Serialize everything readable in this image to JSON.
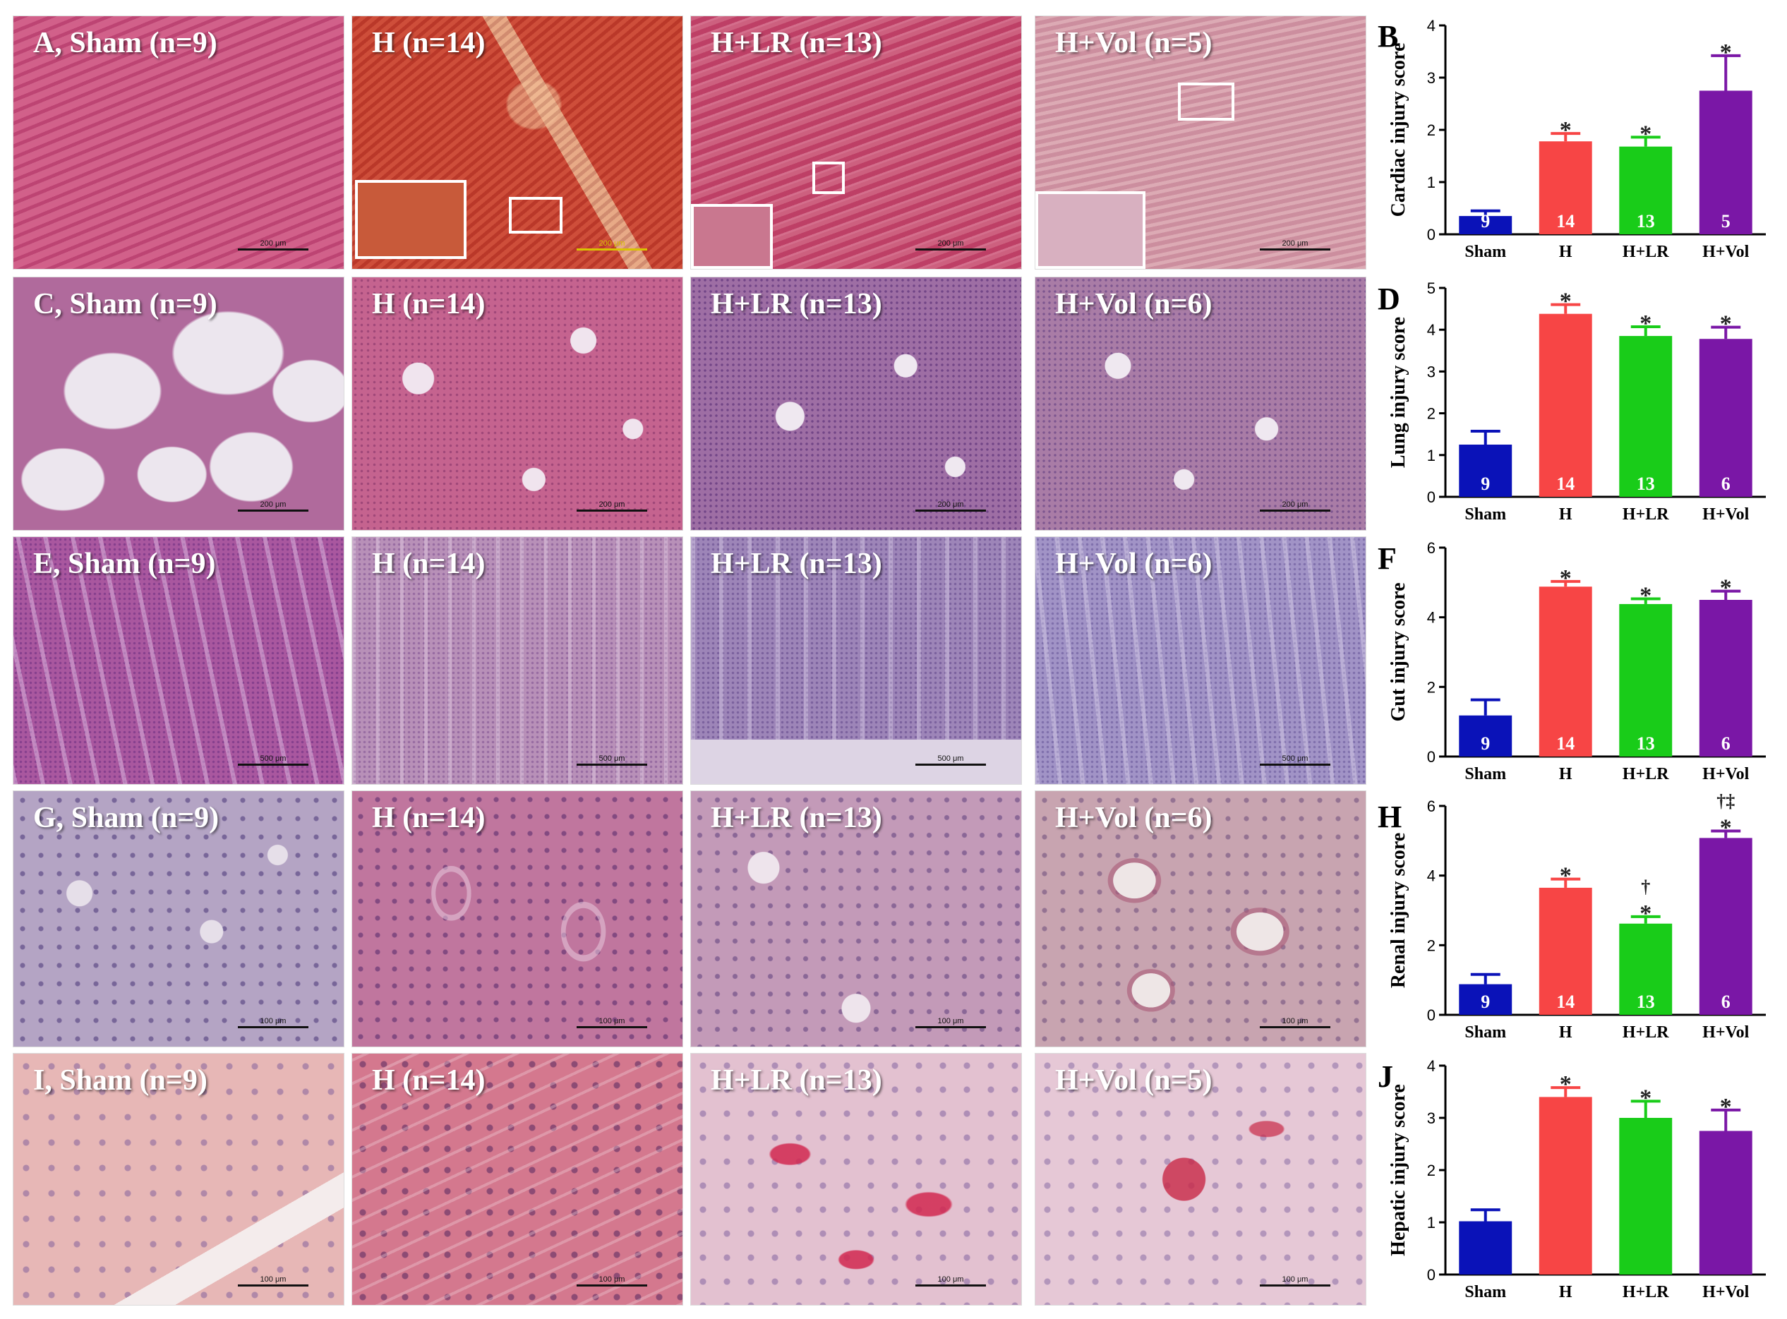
{
  "micrographs": {
    "rows": [
      {
        "organ": "heart",
        "tissue_color": "#c44a72",
        "panels": [
          {
            "label": "A, Sham (n=9)",
            "scale": "200 μm",
            "bg": "#cc4f7d"
          },
          {
            "label": "H (n=14)",
            "scale": "200 μm",
            "bg": "#c9402e"
          },
          {
            "label": "H+LR (n=13)",
            "scale": "200 μm",
            "bg": "#c5466a"
          },
          {
            "label": "H+Vol (n=5)",
            "scale": "200 μm",
            "bg": "#d59aa6"
          }
        ]
      },
      {
        "organ": "lung",
        "tissue_color": "#b05590",
        "panels": [
          {
            "label": "C, Sham (n=9)",
            "scale": "200 μm",
            "bg": "#b06a9c"
          },
          {
            "label": "H (n=14)",
            "scale": "200 μm",
            "bg": "#c5638f"
          },
          {
            "label": "H+LR (n=13)",
            "scale": "200 μm",
            "bg": "#9e6ea4"
          },
          {
            "label": "H+Vol (n=6)",
            "scale": "200 μm",
            "bg": "#a97ca6"
          }
        ]
      },
      {
        "organ": "gut",
        "tissue_color": "#9b5aa8",
        "panels": [
          {
            "label": "E, Sham (n=9)",
            "scale": "500 μm",
            "bg": "#a9579f"
          },
          {
            "label": "H (n=14)",
            "scale": "500 μm",
            "bg": "#b890b8"
          },
          {
            "label": "H+LR (n=13)",
            "scale": "500 μm",
            "bg": "#9d85b8"
          },
          {
            "label": "H+Vol (n=6)",
            "scale": "500 μm",
            "bg": "#a193c6"
          }
        ]
      },
      {
        "organ": "kidney",
        "tissue_color": "#b889b5",
        "panels": [
          {
            "label": "G, Sham (n=9)",
            "scale": "100 μm",
            "bg": "#b4a4c4"
          },
          {
            "label": "H (n=14)",
            "scale": "100 μm",
            "bg": "#c0769e"
          },
          {
            "label": "H+LR (n=13)",
            "scale": "100 μm",
            "bg": "#c39ab8"
          },
          {
            "label": "H+Vol (n=6)",
            "scale": "100 μm",
            "bg": "#c8a4b0"
          }
        ]
      },
      {
        "organ": "liver",
        "tissue_color": "#e0a8b4",
        "panels": [
          {
            "label": "I, Sham (n=9)",
            "scale": "100 μm",
            "bg": "#e7b7b6"
          },
          {
            "label": "H (n=14)",
            "scale": "100 μm",
            "bg": "#d4788e"
          },
          {
            "label": "H+LR (n=13)",
            "scale": "100 μm",
            "bg": "#e3c1d0"
          },
          {
            "label": "H+Vol (n=5)",
            "scale": "100 μm",
            "bg": "#e6c8d6"
          }
        ]
      }
    ]
  },
  "bar_colors": [
    "#0a12b8",
    "#f74545",
    "#19cc19",
    "#7a17a6"
  ],
  "chart_data": [
    {
      "type": "bar",
      "panel": "B",
      "ylabel": "Cardiac injury score",
      "categories": [
        "Sham",
        "H",
        "H+LR",
        "H+Vol"
      ],
      "values": [
        0.35,
        1.78,
        1.68,
        2.75
      ],
      "errors": [
        0.1,
        0.15,
        0.18,
        0.67
      ],
      "n_labels": [
        "9",
        "14",
        "13",
        "5"
      ],
      "marks": [
        "",
        "*",
        "*",
        "*"
      ],
      "ylim": [
        0,
        4
      ],
      "yticks": [
        0,
        1,
        2,
        3,
        4
      ]
    },
    {
      "type": "bar",
      "panel": "D",
      "ylabel": "Lung injury score",
      "categories": [
        "Sham",
        "H",
        "H+LR",
        "H+Vol"
      ],
      "values": [
        1.25,
        4.38,
        3.85,
        3.78
      ],
      "errors": [
        0.32,
        0.22,
        0.22,
        0.28
      ],
      "n_labels": [
        "9",
        "14",
        "13",
        "6"
      ],
      "marks": [
        "",
        "*",
        "*",
        "*"
      ],
      "ylim": [
        0,
        5
      ],
      "yticks": [
        0,
        1,
        2,
        3,
        4,
        5
      ]
    },
    {
      "type": "bar",
      "panel": "F",
      "ylabel": "Gut injury score",
      "categories": [
        "Sham",
        "H",
        "H+LR",
        "H+Vol"
      ],
      "values": [
        1.18,
        4.88,
        4.38,
        4.5
      ],
      "errors": [
        0.45,
        0.15,
        0.15,
        0.25
      ],
      "n_labels": [
        "9",
        "14",
        "13",
        "6"
      ],
      "marks": [
        "",
        "*",
        "*",
        "*"
      ],
      "ylim": [
        0,
        6
      ],
      "yticks": [
        0,
        2,
        4,
        6
      ]
    },
    {
      "type": "bar",
      "panel": "H",
      "ylabel": "Renal injury score",
      "categories": [
        "Sham",
        "H",
        "H+LR",
        "H+Vol"
      ],
      "values": [
        0.88,
        3.65,
        2.62,
        5.08
      ],
      "errors": [
        0.28,
        0.25,
        0.2,
        0.2
      ],
      "n_labels": [
        "9",
        "14",
        "13",
        "6"
      ],
      "marks": [
        "",
        "*",
        "†\n*",
        "†‡\n*"
      ],
      "ylim": [
        0,
        6
      ],
      "yticks": [
        0,
        2,
        4,
        6
      ]
    },
    {
      "type": "bar",
      "panel": "J",
      "ylabel": "Hepatic injury score",
      "categories": [
        "Sham",
        "H",
        "H+LR",
        "H+Vol"
      ],
      "values": [
        1.02,
        3.4,
        3.0,
        2.75
      ],
      "errors": [
        0.22,
        0.18,
        0.32,
        0.4
      ],
      "n_labels": [
        "",
        "",
        "",
        ""
      ],
      "marks": [
        "",
        "*",
        "*",
        "*"
      ],
      "ylim": [
        0,
        4
      ],
      "yticks": [
        0,
        1,
        2,
        3,
        4
      ]
    }
  ]
}
